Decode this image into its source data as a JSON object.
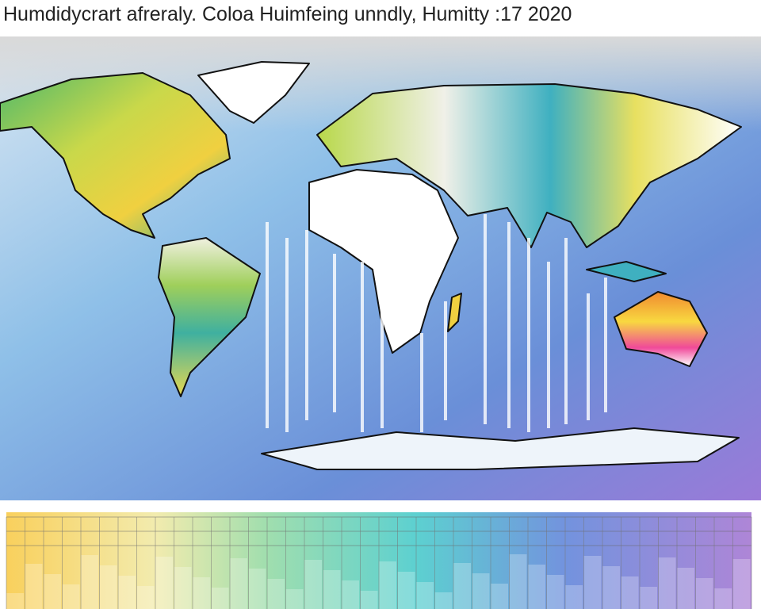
{
  "header": {
    "title": "Humdidycrart afreraly. Coloa Huimfeing unndly, Humitty :17 2020"
  }
}
